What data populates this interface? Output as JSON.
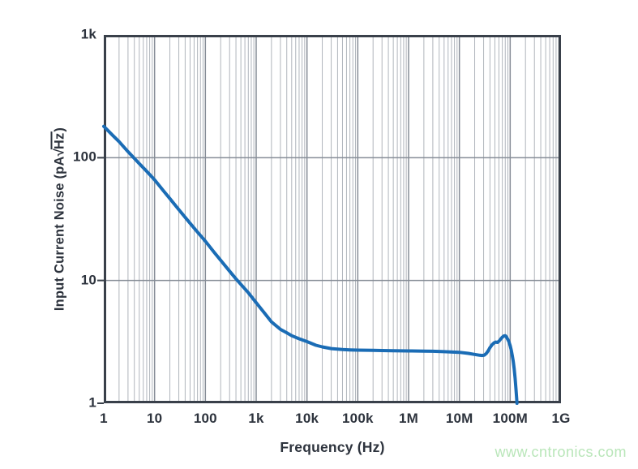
{
  "figure": {
    "background": "#ffffff",
    "watermark": {
      "text": "www.cntronics.com",
      "color": "#b9e6b9"
    }
  },
  "chart_data": {
    "type": "line",
    "title": "",
    "xlabel": "Frequency (Hz)",
    "ylabel": "Input Current Noise (pA√Hz)",
    "ylabel_parts": {
      "prefix": "Input Current Noise (pA",
      "radicand": "Hz",
      "suffix": ")"
    },
    "x_scale": "log",
    "y_scale": "log",
    "xlim": [
      1,
      1000000000
    ],
    "ylim": [
      1,
      1000
    ],
    "grid": {
      "vertical_minor": true,
      "horizontal_minor": false
    },
    "legend": "none",
    "x_ticks": [
      {
        "value": 1,
        "label": "1"
      },
      {
        "value": 10,
        "label": "10"
      },
      {
        "value": 100,
        "label": "100"
      },
      {
        "value": 1000,
        "label": "1k"
      },
      {
        "value": 10000,
        "label": "10k"
      },
      {
        "value": 100000,
        "label": "100k"
      },
      {
        "value": 1000000,
        "label": "1M"
      },
      {
        "value": 10000000,
        "label": "10M"
      },
      {
        "value": 100000000,
        "label": "100M"
      },
      {
        "value": 1000000000,
        "label": "1G"
      }
    ],
    "y_ticks": [
      {
        "value": 1000,
        "label": "1k"
      },
      {
        "value": 100,
        "label": "100"
      },
      {
        "value": 10,
        "label": "10"
      },
      {
        "value": 1,
        "label": "1"
      }
    ],
    "y_gridlines": [
      100,
      10
    ],
    "y_tick_marks": [
      100,
      10,
      1
    ],
    "style": {
      "line_color": "#1a6cb5",
      "line_width": 4,
      "axis_color": "#39404a",
      "major_grid_color": "#868d97",
      "minor_grid_color": "#b0b5bc",
      "tick_label_color": "#2d333d"
    },
    "series": [
      {
        "name": "input-current-noise",
        "points": [
          [
            1,
            180
          ],
          [
            1.5,
            152
          ],
          [
            2,
            135
          ],
          [
            3,
            112
          ],
          [
            5,
            89.6
          ],
          [
            7,
            77.5
          ],
          [
            10,
            66
          ],
          [
            15,
            53.7
          ],
          [
            20,
            46.5
          ],
          [
            30,
            37.7
          ],
          [
            50,
            29.2
          ],
          [
            70,
            24.8
          ],
          [
            100,
            20.9
          ],
          [
            150,
            16.9
          ],
          [
            200,
            14.6
          ],
          [
            300,
            11.9
          ],
          [
            400,
            10.3
          ],
          [
            500,
            9.3
          ],
          [
            700,
            7.95
          ],
          [
            1000,
            6.6
          ],
          [
            1500,
            5.35
          ],
          [
            2000,
            4.6
          ],
          [
            3000,
            4.0
          ],
          [
            4000,
            3.75
          ],
          [
            5000,
            3.55
          ],
          [
            7000,
            3.35
          ],
          [
            10000,
            3.18
          ],
          [
            15000,
            2.97
          ],
          [
            20000,
            2.88
          ],
          [
            30000,
            2.79
          ],
          [
            50000,
            2.74
          ],
          [
            70000,
            2.72
          ],
          [
            100000,
            2.71
          ],
          [
            200000,
            2.7
          ],
          [
            300000,
            2.69
          ],
          [
            500000,
            2.68
          ],
          [
            1000000,
            2.67
          ],
          [
            2000000,
            2.66
          ],
          [
            3000000,
            2.65
          ],
          [
            5000000,
            2.63
          ],
          [
            10000000,
            2.6
          ],
          [
            15000000,
            2.55
          ],
          [
            20000000,
            2.5
          ],
          [
            25000000,
            2.46
          ],
          [
            28000000,
            2.45
          ],
          [
            31000000,
            2.47
          ],
          [
            34000000,
            2.55
          ],
          [
            37000000,
            2.68
          ],
          [
            40000000,
            2.84
          ],
          [
            44000000,
            3.0
          ],
          [
            48000000,
            3.1
          ],
          [
            52000000,
            3.15
          ],
          [
            56000000,
            3.13
          ],
          [
            60000000,
            3.2
          ],
          [
            65000000,
            3.33
          ],
          [
            70000000,
            3.45
          ],
          [
            75000000,
            3.53
          ],
          [
            80000000,
            3.55
          ],
          [
            85000000,
            3.45
          ],
          [
            90000000,
            3.3
          ],
          [
            95000000,
            3.15
          ],
          [
            100000000,
            2.95
          ],
          [
            105000000,
            2.7
          ],
          [
            110000000,
            2.45
          ],
          [
            115000000,
            2.2
          ],
          [
            120000000,
            1.9
          ],
          [
            125000000,
            1.6
          ],
          [
            130000000,
            1.3
          ],
          [
            134000000,
            1.1
          ],
          [
            136000000,
            1.0
          ]
        ]
      }
    ]
  }
}
